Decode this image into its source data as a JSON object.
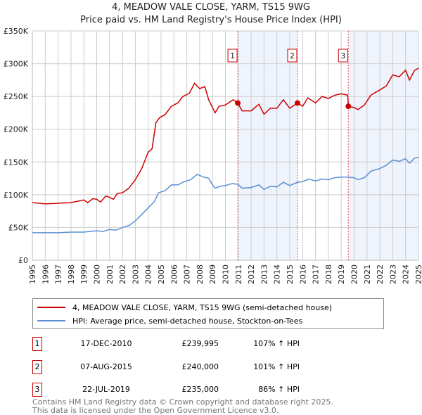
{
  "title": "4, MEADOW VALE CLOSE, YARM, TS15 9WG",
  "subtitle": "Price paid vs. HM Land Registry's House Price Index (HPI)",
  "chart_data": {
    "type": "line",
    "title": "4, MEADOW VALE CLOSE, YARM, TS15 9WG",
    "xlim": [
      1995,
      2025
    ],
    "ylim": [
      0,
      350000
    ],
    "yticks": [
      0,
      50000,
      100000,
      150000,
      200000,
      250000,
      300000,
      350000
    ],
    "ytick_labels": [
      "£0",
      "£50K",
      "£100K",
      "£150K",
      "£200K",
      "£250K",
      "£300K",
      "£350K"
    ],
    "xtick_labels": [
      "1995",
      "1996",
      "1997",
      "1998",
      "1999",
      "2000",
      "2001",
      "2002",
      "2003",
      "2004",
      "2005",
      "2006",
      "2007",
      "2008",
      "2009",
      "2010",
      "2011",
      "2012",
      "2013",
      "2014",
      "2015",
      "2016",
      "2017",
      "2018",
      "2019",
      "2020",
      "2021",
      "2022",
      "2023",
      "2024",
      "2025"
    ],
    "grid": true,
    "colors": {
      "property": "#cc0000",
      "hpi": "#5b8fd4",
      "shade": "#eef3fc",
      "marker_line": "#ee5555"
    },
    "shaded_ranges": [
      [
        2010.96,
        2015.6
      ],
      [
        2019.55,
        2025
      ]
    ],
    "series": [
      {
        "name": "4, MEADOW VALE CLOSE, YARM, TS15 9WG (semi-detached house)",
        "x": [
          1995,
          1996,
          1997,
          1998,
          1999,
          1999.3,
          1999.7,
          2000,
          2000.3,
          2000.7,
          2001,
          2001.3,
          2001.6,
          2002,
          2002.5,
          2003,
          2003.5,
          2004,
          2004.3,
          2004.6,
          2004.9,
          2005.3,
          2005.8,
          2006.3,
          2006.7,
          2007.2,
          2007.6,
          2008,
          2008.4,
          2008.7,
          2009.2,
          2009.5,
          2010,
          2010.6,
          2010.96,
          2011.3,
          2012,
          2012.6,
          2013,
          2013.5,
          2014,
          2014.5,
          2015,
          2015.6,
          2016,
          2016.4,
          2017,
          2017.5,
          2018,
          2018.5,
          2019,
          2019.5,
          2019.55,
          2020,
          2020.3,
          2020.8,
          2021.3,
          2022,
          2022.5,
          2023,
          2023.5,
          2024,
          2024.3,
          2024.7,
          2025
        ],
        "y": [
          88000,
          86000,
          87000,
          88000,
          92000,
          88000,
          94000,
          93000,
          89000,
          98000,
          96000,
          93000,
          102000,
          103000,
          110000,
          123000,
          140000,
          165000,
          170000,
          210000,
          218000,
          222000,
          235000,
          240000,
          250000,
          255000,
          270000,
          262000,
          265000,
          245000,
          225000,
          235000,
          237000,
          245000,
          239995,
          228000,
          228000,
          238000,
          223000,
          232000,
          232000,
          245000,
          232000,
          240000,
          235000,
          248000,
          240000,
          250000,
          247000,
          252000,
          254000,
          252000,
          235000,
          233000,
          230000,
          237000,
          252000,
          260000,
          266000,
          283000,
          280000,
          290000,
          275000,
          290000,
          293000
        ]
      },
      {
        "name": "HPI: Average price, semi-detached house, Stockton-on-Tees",
        "x": [
          1995,
          1996,
          1997,
          1998,
          1999,
          2000,
          2000.5,
          2001,
          2001.5,
          2002,
          2002.5,
          2003,
          2003.5,
          2004,
          2004.5,
          2004.8,
          2005.3,
          2005.8,
          2006.3,
          2006.8,
          2007.3,
          2007.8,
          2008.3,
          2008.7,
          2009,
          2009.2,
          2009.6,
          2010,
          2010.5,
          2010.96,
          2011.3,
          2012,
          2012.6,
          2013,
          2013.5,
          2014,
          2014.5,
          2015,
          2015.6,
          2016,
          2016.5,
          2017,
          2017.5,
          2018,
          2018.5,
          2019,
          2019.55,
          2020,
          2020.3,
          2020.8,
          2021.3,
          2022,
          2022.5,
          2023,
          2023.5,
          2024,
          2024.3,
          2024.7,
          2025
        ],
        "y": [
          42000,
          42000,
          42000,
          43000,
          43000,
          45000,
          44000,
          47000,
          46000,
          50000,
          53000,
          60000,
          70000,
          80000,
          90000,
          103000,
          106000,
          115000,
          115000,
          120000,
          123000,
          131000,
          127000,
          125000,
          115000,
          110000,
          113000,
          114000,
          117000,
          116000,
          110000,
          111000,
          115000,
          108000,
          113000,
          112000,
          119000,
          114000,
          119000,
          120000,
          124000,
          121000,
          124000,
          123000,
          126000,
          127000,
          127000,
          126000,
          123000,
          126000,
          136000,
          140000,
          145000,
          153000,
          151000,
          155000,
          148000,
          156000,
          157000
        ]
      }
    ],
    "sales": [
      {
        "label": "1",
        "x": 2010.96,
        "price": 239995,
        "date": "17-DEC-2010",
        "price_text": "£239,995",
        "hpi_text": "107% ↑ HPI"
      },
      {
        "label": "2",
        "x": 2015.6,
        "price": 240000,
        "date": "07-AUG-2015",
        "price_text": "£240,000",
        "hpi_text": "101% ↑ HPI"
      },
      {
        "label": "3",
        "x": 2019.55,
        "price": 235000,
        "date": "22-JUL-2019",
        "price_text": "£235,000",
        "hpi_text": "86% ↑ HPI"
      }
    ]
  },
  "legend": {
    "property": "4, MEADOW VALE CLOSE, YARM, TS15 9WG (semi-detached house)",
    "hpi": "HPI: Average price, semi-detached house, Stockton-on-Tees"
  },
  "footer": {
    "line1": "Contains HM Land Registry data © Crown copyright and database right 2025.",
    "line2": "This data is licensed under the Open Government Licence v3.0."
  }
}
